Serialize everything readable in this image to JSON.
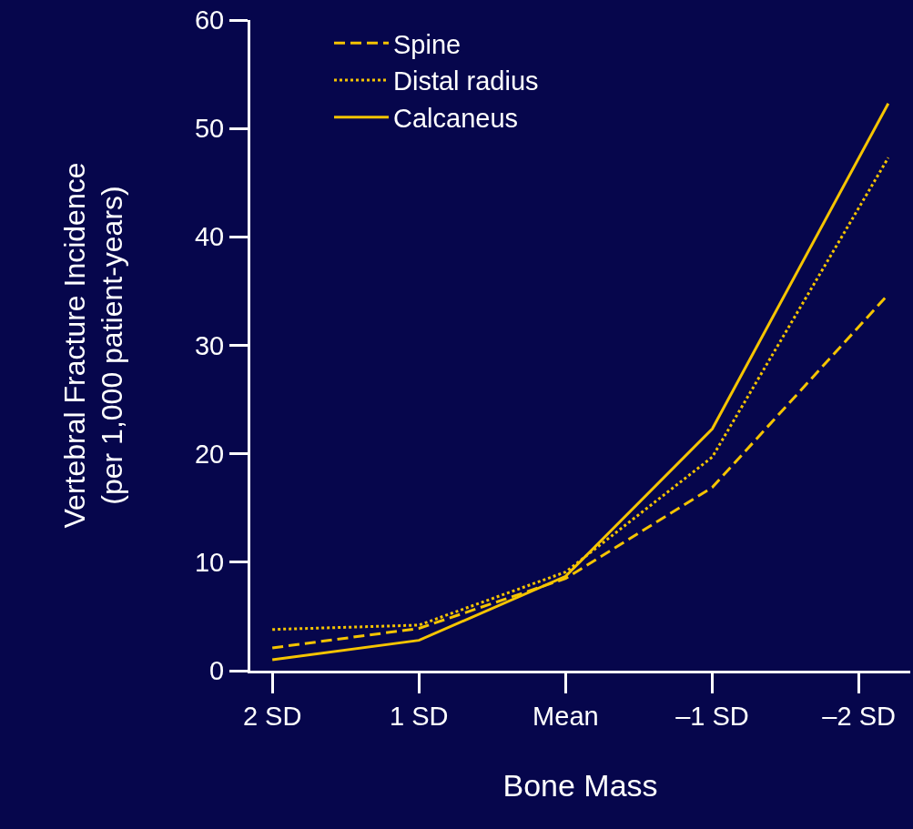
{
  "chart_data": {
    "type": "line",
    "xlabel": "Bone Mass",
    "ylabel": "Vertebral Fracture Incidence\n(per 1,000 patient-years)",
    "x": [
      2,
      1,
      0,
      -1,
      -2.2
    ],
    "series": [
      {
        "name": "Spine",
        "color": "#f5c400",
        "line_style": "dashed",
        "values": [
          2.1,
          3.9,
          8.5,
          16.9,
          34.7
        ]
      },
      {
        "name": "Distal radius",
        "color": "#f5c400",
        "line_style": "dotted",
        "values": [
          3.8,
          4.2,
          9.1,
          19.7,
          47.3
        ]
      },
      {
        "name": "Calcaneus",
        "color": "#f5c400",
        "line_style": "solid",
        "values": [
          1.0,
          2.8,
          8.7,
          22.3,
          52.3
        ]
      }
    ],
    "xlim": [
      2.15,
      -2.35
    ],
    "xticks": [
      {
        "value": 2,
        "label": "2 SD"
      },
      {
        "value": 1,
        "label": "1 SD"
      },
      {
        "value": 0,
        "label": "Mean"
      },
      {
        "value": -1,
        "label": "–1 SD"
      },
      {
        "value": -2,
        "label": "–2 SD"
      }
    ],
    "ylim": [
      0,
      60
    ],
    "yticks": [
      0,
      10,
      20,
      30,
      40,
      50,
      60
    ],
    "grid": false,
    "legend": "top left",
    "marker": "none"
  }
}
